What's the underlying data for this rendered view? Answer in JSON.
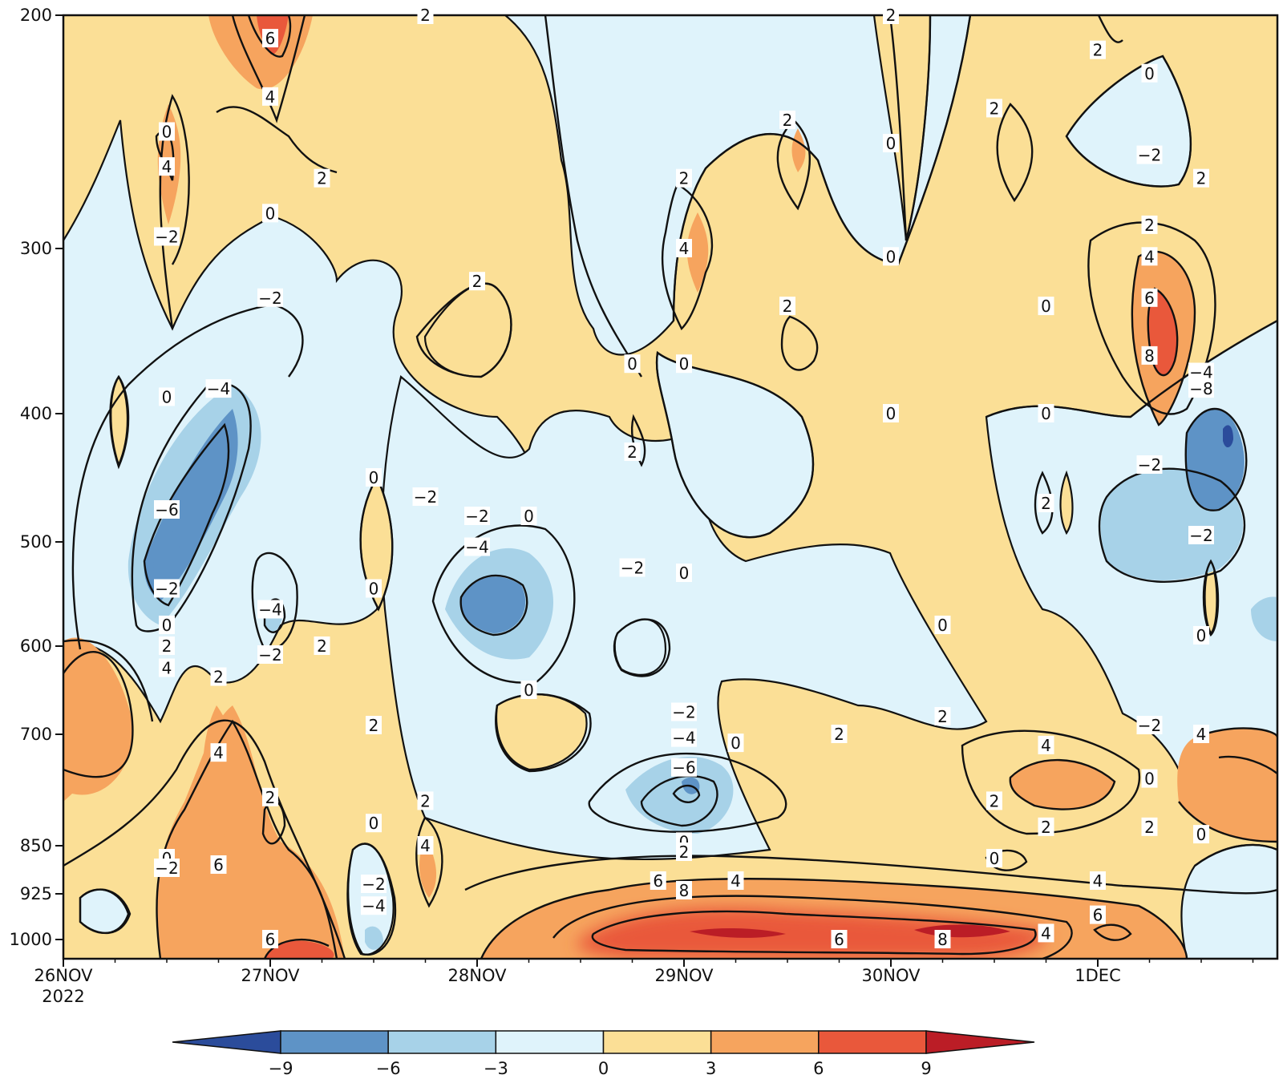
{
  "chart_data": {
    "type": "heatmap",
    "subtype": "filled contour, time-pressure cross-section",
    "title": "",
    "xlabel": "",
    "ylabel": "",
    "x_axis": {
      "ticks": [
        "26NOV",
        "27NOV",
        "28NOV",
        "29NOV",
        "30NOV",
        "1DEC"
      ],
      "first_tick_year": "2022",
      "range": [
        "2022-11-26T00",
        "2022-12-01T18"
      ]
    },
    "y_axis": {
      "ticks": [
        200,
        300,
        400,
        500,
        600,
        700,
        850,
        925,
        1000
      ],
      "range": [
        1000,
        200
      ],
      "inverted": true,
      "scale": "pressure levels"
    },
    "colorbar": {
      "orientation": "horizontal",
      "position": "bottom",
      "extend": "both",
      "levels": [
        -9,
        -6,
        -3,
        0,
        3,
        6,
        9
      ],
      "tick_labels": [
        "−9",
        "−6",
        "−3",
        "0",
        "3",
        "6",
        "9"
      ],
      "colors": [
        "#2b4c9b",
        "#5e93c6",
        "#a7d2e8",
        "#dff3fb",
        "#fbdf96",
        "#f6a45e",
        "#e9583b",
        "#bb1d26"
      ]
    },
    "colors": {
      "background_positive": "#fbdf96",
      "background_negative": "#dff3fb",
      "contour_line": "#111111"
    },
    "contour_labels": [
      {
        "t": "2022-11-26T12",
        "p": 250,
        "text": "0"
      },
      {
        "t": "2022-11-26T12",
        "p": 295,
        "text": "−2"
      },
      {
        "t": "2022-11-26T12",
        "p": 390,
        "text": "0"
      },
      {
        "t": "2022-11-26T12",
        "p": 545,
        "text": "−2"
      },
      {
        "t": "2022-11-26T12",
        "p": 580,
        "text": "0"
      },
      {
        "t": "2022-11-26T12",
        "p": 600,
        "text": "2"
      },
      {
        "t": "2022-11-26T12",
        "p": 625,
        "text": "4"
      },
      {
        "t": "2022-11-26T12",
        "p": 870,
        "text": "0"
      },
      {
        "t": "2022-11-26T12",
        "p": 885,
        "text": "−2"
      },
      {
        "t": "2022-11-26T12",
        "p": 265,
        "text": "4"
      },
      {
        "t": "2022-11-26T12",
        "p": 475,
        "text": "−6"
      },
      {
        "t": "2022-11-26T18",
        "p": 385,
        "text": "−4"
      },
      {
        "t": "2022-11-26T18",
        "p": 635,
        "text": "2"
      },
      {
        "t": "2022-11-26T18",
        "p": 725,
        "text": "4"
      },
      {
        "t": "2022-11-26T18",
        "p": 880,
        "text": "6"
      },
      {
        "t": "2022-11-27T00",
        "p": 210,
        "text": "6"
      },
      {
        "t": "2022-11-27T00",
        "p": 235,
        "text": "4"
      },
      {
        "t": "2022-11-27T00",
        "p": 285,
        "text": "0"
      },
      {
        "t": "2022-11-27T00",
        "p": 330,
        "text": "−2"
      },
      {
        "t": "2022-11-27T00",
        "p": 565,
        "text": "−4"
      },
      {
        "t": "2022-11-27T00",
        "p": 610,
        "text": "−2"
      },
      {
        "t": "2022-11-27T00",
        "p": 785,
        "text": "2"
      },
      {
        "t": "2022-11-27T00",
        "p": 1000,
        "text": "6"
      },
      {
        "t": "2022-11-27T06",
        "p": 270,
        "text": "2"
      },
      {
        "t": "2022-11-27T06",
        "p": 600,
        "text": "2"
      },
      {
        "t": "2022-11-27T12",
        "p": 450,
        "text": "0"
      },
      {
        "t": "2022-11-27T12",
        "p": 545,
        "text": "0"
      },
      {
        "t": "2022-11-27T12",
        "p": 690,
        "text": "2"
      },
      {
        "t": "2022-11-27T12",
        "p": 820,
        "text": "0"
      },
      {
        "t": "2022-11-27T12",
        "p": 910,
        "text": "−2"
      },
      {
        "t": "2022-11-27T12",
        "p": 945,
        "text": "−4"
      },
      {
        "t": "2022-11-27T18",
        "p": 200,
        "text": "2"
      },
      {
        "t": "2022-11-27T18",
        "p": 465,
        "text": "−2"
      },
      {
        "t": "2022-11-27T18",
        "p": 790,
        "text": "2"
      },
      {
        "t": "2022-11-27T18",
        "p": 850,
        "text": "4"
      },
      {
        "t": "2022-11-28T00",
        "p": 320,
        "text": "2"
      },
      {
        "t": "2022-11-28T00",
        "p": 480,
        "text": "−2"
      },
      {
        "t": "2022-11-28T00",
        "p": 505,
        "text": "−4"
      },
      {
        "t": "2022-11-28T06",
        "p": 480,
        "text": "0"
      },
      {
        "t": "2022-11-28T06",
        "p": 650,
        "text": "0"
      },
      {
        "t": "2022-11-28T18",
        "p": 370,
        "text": "0"
      },
      {
        "t": "2022-11-28T18",
        "p": 430,
        "text": "2"
      },
      {
        "t": "2022-11-28T18",
        "p": 525,
        "text": "−2"
      },
      {
        "t": "2022-11-29T00",
        "p": 270,
        "text": "2"
      },
      {
        "t": "2022-11-29T00",
        "p": 300,
        "text": "4"
      },
      {
        "t": "2022-11-29T00",
        "p": 370,
        "text": "0"
      },
      {
        "t": "2022-11-29T00",
        "p": 530,
        "text": "0"
      },
      {
        "t": "2022-11-29T00",
        "p": 675,
        "text": "−2"
      },
      {
        "t": "2022-11-29T00",
        "p": 705,
        "text": "−4"
      },
      {
        "t": "2022-11-29T00",
        "p": 745,
        "text": "−6"
      },
      {
        "t": "2022-11-29T00",
        "p": 845,
        "text": "0"
      },
      {
        "t": "2022-11-29T00",
        "p": 860,
        "text": "2"
      },
      {
        "t": "2022-11-29T00",
        "p": 920,
        "text": "8"
      },
      {
        "t": "2022-11-29T06",
        "p": 712,
        "text": "0"
      },
      {
        "t": "2022-11-28T21",
        "p": 905,
        "text": "6"
      },
      {
        "t": "2022-11-29T06",
        "p": 905,
        "text": "4"
      },
      {
        "t": "2022-11-29T12",
        "p": 245,
        "text": "2"
      },
      {
        "t": "2022-11-29T12",
        "p": 335,
        "text": "2"
      },
      {
        "t": "2022-11-29T18",
        "p": 700,
        "text": "2"
      },
      {
        "t": "2022-11-29T18",
        "p": 1000,
        "text": "6"
      },
      {
        "t": "2022-11-30T00",
        "p": 200,
        "text": "2"
      },
      {
        "t": "2022-11-30T00",
        "p": 255,
        "text": "0"
      },
      {
        "t": "2022-11-30T00",
        "p": 305,
        "text": "0"
      },
      {
        "t": "2022-11-30T00",
        "p": 400,
        "text": "0"
      },
      {
        "t": "2022-11-30T06",
        "p": 580,
        "text": "0"
      },
      {
        "t": "2022-11-30T06",
        "p": 680,
        "text": "2"
      },
      {
        "t": "2022-11-30T06",
        "p": 1000,
        "text": "8"
      },
      {
        "t": "2022-11-30T12",
        "p": 240,
        "text": "2"
      },
      {
        "t": "2022-11-30T12",
        "p": 790,
        "text": "2"
      },
      {
        "t": "2022-11-30T12",
        "p": 870,
        "text": "0"
      },
      {
        "t": "2022-11-30T18",
        "p": 335,
        "text": "0"
      },
      {
        "t": "2022-11-30T18",
        "p": 400,
        "text": "0"
      },
      {
        "t": "2022-11-30T18",
        "p": 470,
        "text": "2"
      },
      {
        "t": "2022-11-30T18",
        "p": 715,
        "text": "4"
      },
      {
        "t": "2022-11-30T18",
        "p": 825,
        "text": "2"
      },
      {
        "t": "2022-11-30T18",
        "p": 990,
        "text": "4"
      },
      {
        "t": "2022-12-01T00",
        "p": 215,
        "text": "2"
      },
      {
        "t": "2022-12-01T00",
        "p": 905,
        "text": "4"
      },
      {
        "t": "2022-12-01T00",
        "p": 960,
        "text": "6"
      },
      {
        "t": "2022-12-01T06",
        "p": 225,
        "text": "0"
      },
      {
        "t": "2022-12-01T06",
        "p": 260,
        "text": "−2"
      },
      {
        "t": "2022-12-01T06",
        "p": 290,
        "text": "2"
      },
      {
        "t": "2022-12-01T06",
        "p": 305,
        "text": "4"
      },
      {
        "t": "2022-12-01T06",
        "p": 330,
        "text": "6"
      },
      {
        "t": "2022-12-01T06",
        "p": 365,
        "text": "8"
      },
      {
        "t": "2022-12-01T06",
        "p": 440,
        "text": "−2"
      },
      {
        "t": "2022-12-01T06",
        "p": 690,
        "text": "−2"
      },
      {
        "t": "2022-12-01T06",
        "p": 760,
        "text": "0"
      },
      {
        "t": "2022-12-01T06",
        "p": 825,
        "text": "2"
      },
      {
        "t": "2022-12-01T12",
        "p": 270,
        "text": "2"
      },
      {
        "t": "2022-12-01T12",
        "p": 375,
        "text": "−4"
      },
      {
        "t": "2022-12-01T12",
        "p": 385,
        "text": "−8"
      },
      {
        "t": "2022-12-01T12",
        "p": 495,
        "text": "−2"
      },
      {
        "t": "2022-12-01T12",
        "p": 590,
        "text": "0"
      },
      {
        "t": "2022-12-01T12",
        "p": 700,
        "text": "4"
      },
      {
        "t": "2022-12-01T12",
        "p": 835,
        "text": "0"
      }
    ]
  }
}
